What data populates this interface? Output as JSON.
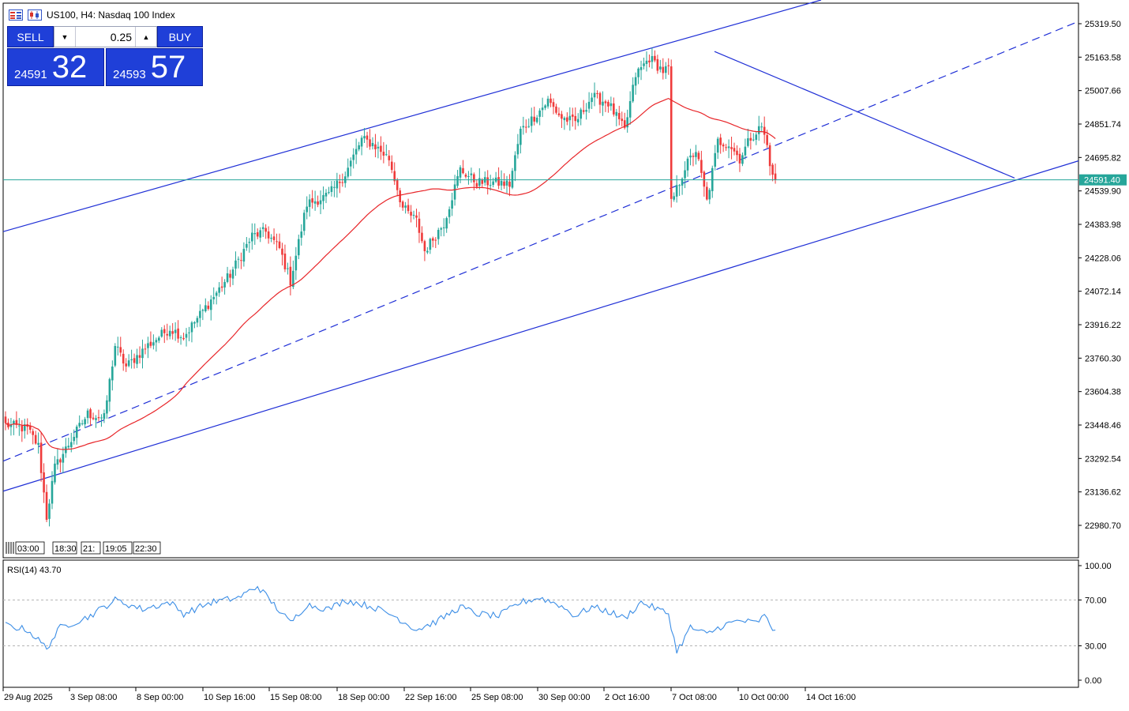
{
  "header": {
    "symbol_title": "US100, H4:  Nasdaq 100 Index"
  },
  "trade_panel": {
    "sell_label": "SELL",
    "buy_label": "BUY",
    "lot_value": "0.25",
    "sell_price_main": "24591",
    "sell_price_pips": "32",
    "buy_price_main": "24593",
    "buy_price_pips": "57"
  },
  "colors": {
    "up_candle": "#26a69a",
    "down_candle": "#ef3b3b",
    "ma_line": "#e8262a",
    "channel_lines": "#1f2fd6",
    "price_line": "#26a69a",
    "rsi_line": "#3c8ee6",
    "panel_blue": "#1f3fd8"
  },
  "current_price_label": "24591.40",
  "main_axis": {
    "labels": [
      "25319.50",
      "25163.58",
      "25007.66",
      "24851.74",
      "24695.82",
      "24539.90",
      "24383.98",
      "24228.06",
      "24072.14",
      "23916.22",
      "23760.30",
      "23604.38",
      "23448.46",
      "23292.54",
      "23136.62",
      "22980.70"
    ]
  },
  "rsi": {
    "title": "RSI(14) 43.70",
    "axis_labels": [
      "100.00",
      "70.00",
      "30.00",
      "0.00"
    ],
    "levels": [
      70,
      30
    ]
  },
  "x_axis": {
    "labels": [
      "29 Aug 2025",
      "3 Sep 08:00",
      "8 Sep 00:00",
      "10 Sep 16:00",
      "15 Sep 08:00",
      "18 Sep 00:00",
      "22 Sep 16:00",
      "25 Sep 08:00",
      "30 Sep 00:00",
      "2 Oct 16:00",
      "7 Oct 08:00",
      "10 Oct 00:00",
      "14 Oct 16:00"
    ]
  },
  "time_markers": {
    "labels": [
      "03:00",
      "18:30",
      "21:",
      "19:05",
      "22:30"
    ]
  },
  "chart_data": {
    "type": "candlestick",
    "symbol": "US100",
    "timeframe": "H4",
    "ylim": [
      22900,
      25380
    ],
    "rsi_ylim": [
      0,
      100
    ],
    "anchors": [
      {
        "i": 0,
        "p": 23450
      },
      {
        "i": 8,
        "p": 23430
      },
      {
        "i": 12,
        "p": 23350
      },
      {
        "i": 15,
        "p": 23020
      },
      {
        "i": 18,
        "p": 23250
      },
      {
        "i": 24,
        "p": 23380
      },
      {
        "i": 30,
        "p": 23500
      },
      {
        "i": 36,
        "p": 23480
      },
      {
        "i": 40,
        "p": 23820
      },
      {
        "i": 44,
        "p": 23720
      },
      {
        "i": 52,
        "p": 23820
      },
      {
        "i": 60,
        "p": 23900
      },
      {
        "i": 65,
        "p": 23860
      },
      {
        "i": 72,
        "p": 23980
      },
      {
        "i": 82,
        "p": 24150
      },
      {
        "i": 90,
        "p": 24330
      },
      {
        "i": 95,
        "p": 24350
      },
      {
        "i": 100,
        "p": 24270
      },
      {
        "i": 104,
        "p": 24120
      },
      {
        "i": 110,
        "p": 24480
      },
      {
        "i": 118,
        "p": 24520
      },
      {
        "i": 124,
        "p": 24620
      },
      {
        "i": 130,
        "p": 24780
      },
      {
        "i": 134,
        "p": 24760
      },
      {
        "i": 140,
        "p": 24690
      },
      {
        "i": 145,
        "p": 24460
      },
      {
        "i": 150,
        "p": 24400
      },
      {
        "i": 153,
        "p": 24260
      },
      {
        "i": 160,
        "p": 24390
      },
      {
        "i": 166,
        "p": 24640
      },
      {
        "i": 172,
        "p": 24580
      },
      {
        "i": 178,
        "p": 24580
      },
      {
        "i": 184,
        "p": 24570
      },
      {
        "i": 188,
        "p": 24820
      },
      {
        "i": 194,
        "p": 24900
      },
      {
        "i": 198,
        "p": 24960
      },
      {
        "i": 203,
        "p": 24880
      },
      {
        "i": 208,
        "p": 24860
      },
      {
        "i": 214,
        "p": 24980
      },
      {
        "i": 220,
        "p": 24950
      },
      {
        "i": 226,
        "p": 24820
      },
      {
        "i": 230,
        "p": 25080
      },
      {
        "i": 235,
        "p": 25160
      },
      {
        "i": 240,
        "p": 25100
      },
      {
        "i": 242,
        "p": 25110
      },
      {
        "i": 243,
        "p": 24480
      },
      {
        "i": 248,
        "p": 24650
      },
      {
        "i": 252,
        "p": 24730
      },
      {
        "i": 256,
        "p": 24490
      },
      {
        "i": 260,
        "p": 24770
      },
      {
        "i": 264,
        "p": 24760
      },
      {
        "i": 268,
        "p": 24690
      },
      {
        "i": 272,
        "p": 24790
      },
      {
        "i": 276,
        "p": 24840
      },
      {
        "i": 278,
        "p": 24750
      },
      {
        "i": 280,
        "p": 24600
      },
      {
        "i": 281,
        "p": 24591.4
      }
    ],
    "rsi_anchors": [
      {
        "i": 0,
        "v": 48
      },
      {
        "i": 8,
        "v": 44
      },
      {
        "i": 15,
        "v": 28
      },
      {
        "i": 20,
        "v": 46
      },
      {
        "i": 30,
        "v": 55
      },
      {
        "i": 40,
        "v": 70
      },
      {
        "i": 50,
        "v": 62
      },
      {
        "i": 60,
        "v": 68
      },
      {
        "i": 65,
        "v": 58
      },
      {
        "i": 75,
        "v": 68
      },
      {
        "i": 85,
        "v": 72
      },
      {
        "i": 92,
        "v": 82
      },
      {
        "i": 98,
        "v": 66
      },
      {
        "i": 104,
        "v": 50
      },
      {
        "i": 110,
        "v": 66
      },
      {
        "i": 118,
        "v": 62
      },
      {
        "i": 124,
        "v": 70
      },
      {
        "i": 134,
        "v": 64
      },
      {
        "i": 142,
        "v": 56
      },
      {
        "i": 150,
        "v": 44
      },
      {
        "i": 158,
        "v": 52
      },
      {
        "i": 166,
        "v": 64
      },
      {
        "i": 172,
        "v": 58
      },
      {
        "i": 180,
        "v": 56
      },
      {
        "i": 188,
        "v": 68
      },
      {
        "i": 195,
        "v": 72
      },
      {
        "i": 202,
        "v": 66
      },
      {
        "i": 208,
        "v": 56
      },
      {
        "i": 214,
        "v": 64
      },
      {
        "i": 220,
        "v": 60
      },
      {
        "i": 226,
        "v": 54
      },
      {
        "i": 232,
        "v": 68
      },
      {
        "i": 238,
        "v": 62
      },
      {
        "i": 242,
        "v": 58
      },
      {
        "i": 245,
        "v": 25
      },
      {
        "i": 250,
        "v": 46
      },
      {
        "i": 256,
        "v": 40
      },
      {
        "i": 262,
        "v": 48
      },
      {
        "i": 268,
        "v": 52
      },
      {
        "i": 274,
        "v": 50
      },
      {
        "i": 277,
        "v": 56
      },
      {
        "i": 280,
        "v": 45
      },
      {
        "i": 281,
        "v": 43.7
      }
    ],
    "candles_total": 282,
    "ma_period": 50,
    "trendlines": [
      {
        "name": "upper-channel",
        "style": "solid",
        "from": {
          "date": "29 Aug 2025",
          "price": 24350
        },
        "to": {
          "date": "15 Oct 2025",
          "price": 25430
        }
      },
      {
        "name": "lower-channel",
        "style": "solid",
        "from": {
          "date": "29 Aug 2025",
          "price": 23140
        },
        "to": {
          "date": "22 Oct 2025",
          "price": 24680
        }
      },
      {
        "name": "mid-channel",
        "style": "dashed",
        "from": {
          "date": "29 Aug 2025",
          "price": 23280
        },
        "to": {
          "date": "22 Oct 2025",
          "price": 25330
        }
      },
      {
        "name": "descending-resistance",
        "style": "solid",
        "from": {
          "date": "8 Oct 2025",
          "price": 25190
        },
        "to": {
          "date": "20 Oct 2025",
          "price": 24600
        }
      }
    ]
  }
}
